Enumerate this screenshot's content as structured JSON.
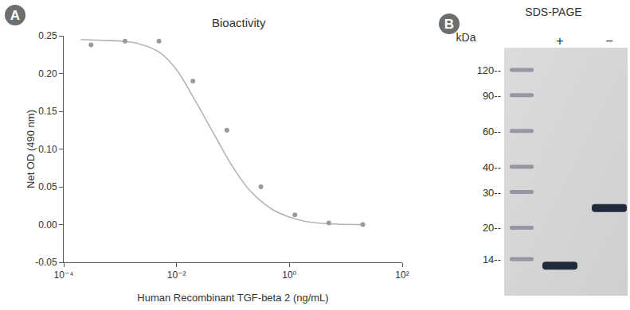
{
  "chart_data": {
    "type": "scatter",
    "panel": "A",
    "title": "Bioactivity",
    "x_label": "Human Recombinant TGF-beta 2 (ng/mL)",
    "y_label": "Net OD (490 nm)",
    "log": "x",
    "grid": false,
    "xlim": [
      0.0001,
      100
    ],
    "xticks": [
      {
        "value": 0.0001,
        "label": "10⁻⁴"
      },
      {
        "value": 0.01,
        "label": "10⁻²"
      },
      {
        "value": 1,
        "label": "10⁰"
      },
      {
        "value": 100,
        "label": "10²"
      }
    ],
    "ylim": [
      -0.05,
      0.25
    ],
    "yticks": [
      -0.05,
      {
        "value": 0,
        "label": "0.00"
      },
      0.05,
      {
        "value": 0.1,
        "label": "0.10"
      },
      0.15,
      {
        "value": 0.2,
        "label": "0.20"
      },
      0.25
    ],
    "series": [
      {
        "type": "scatter",
        "marker": "circle",
        "color": "#9a9a9a",
        "x": [
          0.000305,
          0.00122,
          0.00488,
          0.0195,
          0.078,
          0.3125,
          1.25,
          5,
          20
        ],
        "values": [
          0.238,
          0.243,
          0.243,
          0.19,
          0.125,
          0.05,
          0.013,
          0.002,
          0.0
        ]
      },
      {
        "type": "line",
        "line_style": "solid",
        "color": "#b4b4b4",
        "x": [
          0.0002,
          0.0005,
          0.001,
          0.002,
          0.005,
          0.01,
          0.02,
          0.05,
          0.1,
          0.2,
          0.5,
          1,
          2,
          5,
          20
        ],
        "values": [
          0.245,
          0.244,
          0.243,
          0.24,
          0.228,
          0.205,
          0.168,
          0.115,
          0.076,
          0.045,
          0.02,
          0.01,
          0.004,
          0.001,
          0.0
        ]
      }
    ]
  },
  "gel": {
    "panel": "B",
    "title": "SDS-PAGE",
    "unit": "kDa",
    "markers": [
      {
        "value": 120,
        "label": "120--"
      },
      {
        "value": 90,
        "label": "90--"
      },
      {
        "value": 60,
        "label": "60--"
      },
      {
        "value": 40,
        "label": "40--"
      },
      {
        "value": 30,
        "label": "30--"
      },
      {
        "value": 20,
        "label": "20--"
      },
      {
        "value": 14,
        "label": "14--"
      }
    ],
    "lanes": [
      "+",
      "−"
    ],
    "bands": [
      {
        "lane": "+",
        "kda": 13
      },
      {
        "lane": "−",
        "kda": 25
      }
    ]
  }
}
